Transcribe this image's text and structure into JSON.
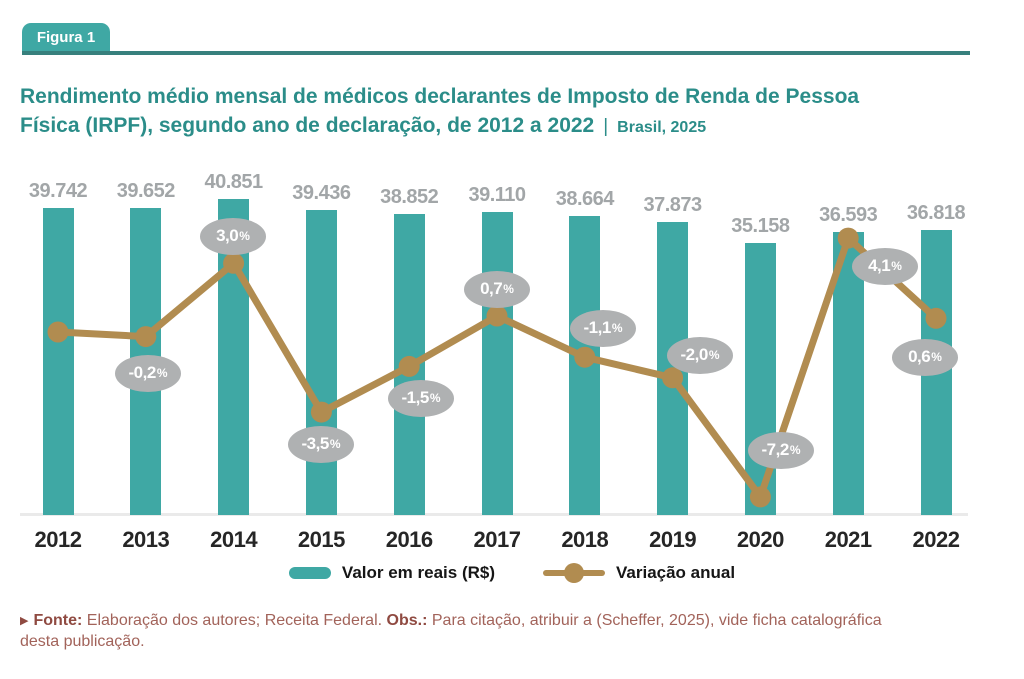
{
  "header": {
    "tab_label": "Figura 1",
    "title_line1": "Rendimento médio mensal de médicos declarantes de Imposto de Renda de Pessoa",
    "title_line2": "Física (IRPF), segundo ano de declaração, de 2012 a 2022",
    "separator": "|",
    "subtitle": "Brasil, 2025"
  },
  "chart_data": {
    "type": "bar+line",
    "categories": [
      "2012",
      "2013",
      "2014",
      "2015",
      "2016",
      "2017",
      "2018",
      "2019",
      "2020",
      "2021",
      "2022"
    ],
    "series": [
      {
        "name": "Valor em reais (R$)",
        "type": "bar",
        "color": "#3FA8A4",
        "values": [
          39742,
          39652,
          40851,
          39436,
          38852,
          39110,
          38664,
          37873,
          35158,
          36593,
          36818
        ],
        "labels": [
          "39.742",
          "39.652",
          "40.851",
          "39.436",
          "38.852",
          "39.110",
          "38.664",
          "37.873",
          "35.158",
          "36.593",
          "36.818"
        ]
      },
      {
        "name": "Variação anual",
        "type": "line",
        "color": "#B18C50",
        "bubble_color": "#AFB1B2",
        "values": [
          null,
          -0.2,
          3.0,
          -3.5,
          -1.5,
          0.7,
          -1.1,
          -2.0,
          -7.2,
          4.1,
          0.6
        ],
        "labels": [
          "",
          "-0,2%",
          "3,0%",
          "-3,5%",
          "-1,5%",
          "0,7%",
          "-1,1%",
          "-2,0%",
          "-7,2%",
          "4,1%",
          "0,6%"
        ]
      }
    ],
    "title": "Rendimento médio mensal de médicos declarantes de Imposto de Renda de Pessoa Física (IRPF), segundo ano de declaração, de 2012 a 2022 | Brasil, 2025",
    "xlabel": "",
    "ylabel": "",
    "value_axis_visible": false,
    "grid": false,
    "legend_position": "bottom-center",
    "bar_value_format": "thousands with dot separator (R$)",
    "line_value_format": "percent with comma decimal"
  },
  "legend": {
    "bars": "Valor em reais (R$)",
    "line": "Variação anual"
  },
  "footer": {
    "marker": "▶",
    "fonte_label": "Fonte:",
    "fonte_text": "Elaboração dos autores; Receita Federal.",
    "obs_label": "Obs.:",
    "obs_text": "Para citação, atribuir a (Scheffer, 2025), vide ficha catalográfica desta publicação."
  },
  "colors": {
    "teal": "#3FA8A4",
    "teal_dark": "#37807D",
    "title": "#2B8D89",
    "gold": "#B18C50",
    "bubble": "#AFB1B2",
    "value_label": "#A2A6A8",
    "year_label": "#262626",
    "footer": "#A2635A",
    "footer_bold": "#8F4A41",
    "axis_line": "#EAEAEA"
  }
}
